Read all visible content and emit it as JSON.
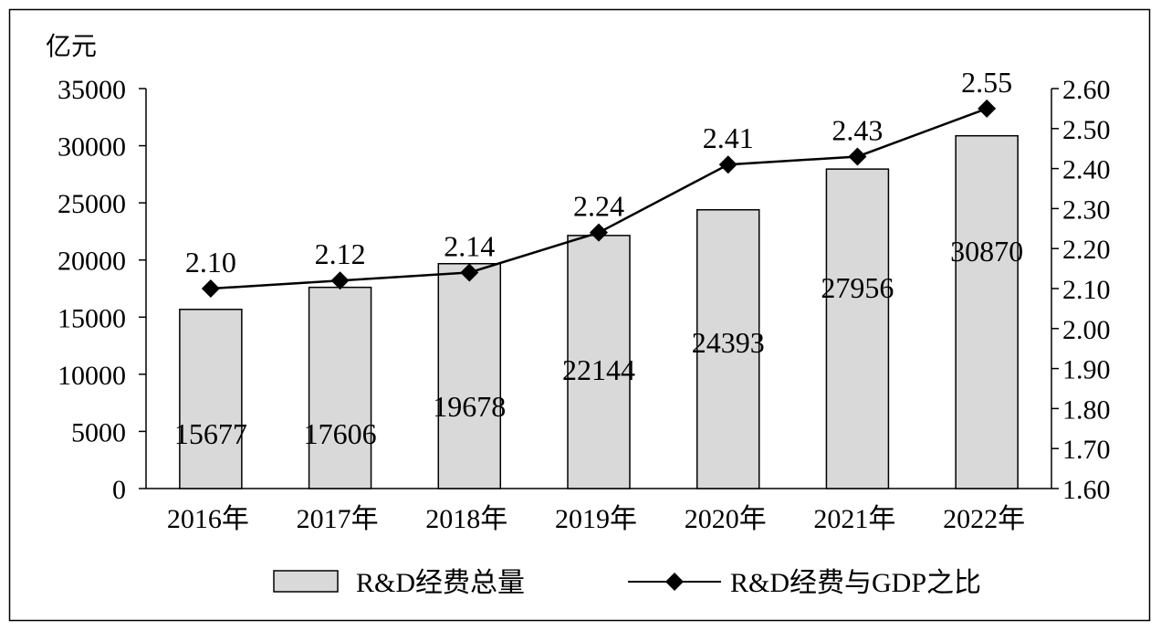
{
  "chart_data": {
    "type": "bar",
    "title": "",
    "ylabel": "亿元",
    "categories": [
      "2016年",
      "2017年",
      "2018年",
      "2019年",
      "2020年",
      "2021年",
      "2022年"
    ],
    "series": [
      {
        "name": "R&D经费总量",
        "type": "bar",
        "axis": "left",
        "values": [
          15677,
          17606,
          19678,
          22144,
          24393,
          27956,
          30870
        ],
        "color": "#d9d9d9"
      },
      {
        "name": "R&D经费与GDP之比",
        "type": "line",
        "axis": "right",
        "values": [
          2.1,
          2.12,
          2.14,
          2.24,
          2.41,
          2.43,
          2.55
        ],
        "color": "#000000",
        "marker": "diamond"
      }
    ],
    "ylim": [
      0,
      35000
    ],
    "y_ticks": [
      "0",
      "5000",
      "10000",
      "15000",
      "20000",
      "25000",
      "30000",
      "35000"
    ],
    "y2lim": [
      1.6,
      2.6
    ],
    "y2_ticks": [
      "1.60",
      "1.70",
      "1.80",
      "1.90",
      "2.00",
      "2.10",
      "2.20",
      "2.30",
      "2.40",
      "2.50",
      "2.60"
    ],
    "bar_labels": [
      "15677",
      "17606",
      "19678",
      "22144",
      "24393",
      "27956",
      "30870"
    ],
    "line_labels": [
      "2.10",
      "2.12",
      "2.14",
      "2.24",
      "2.41",
      "2.43",
      "2.55"
    ],
    "legend": {
      "placement": "bottom",
      "items": [
        "R&D经费总量",
        "R&D经费与GDP之比"
      ]
    },
    "grid": false
  }
}
